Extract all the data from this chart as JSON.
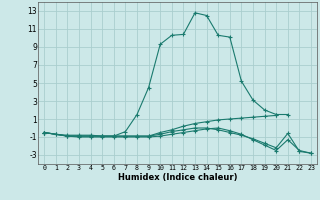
{
  "xlabel": "Humidex (Indice chaleur)",
  "background_color": "#cce8e8",
  "grid_color": "#aacece",
  "line_color": "#1a7a6e",
  "xlim": [
    -0.5,
    23.5
  ],
  "ylim": [
    -4,
    14
  ],
  "xticks": [
    0,
    1,
    2,
    3,
    4,
    5,
    6,
    7,
    8,
    9,
    10,
    11,
    12,
    13,
    14,
    15,
    16,
    17,
    18,
    19,
    20,
    21,
    22,
    23
  ],
  "yticks": [
    -3,
    -1,
    1,
    3,
    5,
    7,
    9,
    11,
    13
  ],
  "series": [
    {
      "x": [
        0,
        1,
        2,
        3,
        4,
        5,
        6,
        7,
        8,
        9,
        10,
        11,
        12,
        13,
        14,
        15,
        16,
        17,
        18,
        19,
        20,
        21
      ],
      "y": [
        -0.5,
        -0.7,
        -0.8,
        -0.8,
        -0.8,
        -0.9,
        -0.9,
        -0.4,
        1.5,
        4.5,
        9.3,
        10.3,
        10.4,
        12.8,
        12.5,
        10.3,
        10.1,
        5.2,
        3.1,
        2.0,
        1.5,
        1.5
      ]
    },
    {
      "x": [
        0,
        1,
        2,
        3,
        4,
        5,
        6,
        7,
        8,
        9,
        10,
        11,
        12,
        13,
        14,
        15,
        16,
        17,
        18,
        19,
        20
      ],
      "y": [
        -0.5,
        -0.7,
        -0.9,
        -0.9,
        -0.9,
        -0.9,
        -0.9,
        -0.9,
        -0.9,
        -0.9,
        -0.5,
        -0.2,
        0.2,
        0.5,
        0.7,
        0.9,
        1.0,
        1.1,
        1.2,
        1.3,
        1.4
      ]
    },
    {
      "x": [
        0,
        2,
        3,
        4,
        5,
        6,
        7,
        8,
        9,
        10,
        11,
        12,
        13,
        14,
        15,
        16,
        17,
        18,
        19,
        20,
        21,
        22,
        23
      ],
      "y": [
        -0.5,
        -0.9,
        -0.9,
        -0.9,
        -0.9,
        -0.9,
        -0.9,
        -0.9,
        -0.9,
        -0.7,
        -0.4,
        -0.2,
        0.0,
        0.0,
        -0.2,
        -0.5,
        -0.8,
        -1.2,
        -1.7,
        -2.2,
        -0.6,
        -2.6,
        -2.8
      ]
    },
    {
      "x": [
        0,
        2,
        3,
        4,
        5,
        6,
        7,
        8,
        9,
        10,
        11,
        12,
        13,
        14,
        15,
        16,
        17,
        18,
        19,
        20,
        21,
        22,
        23
      ],
      "y": [
        -0.5,
        -0.9,
        -1.0,
        -1.0,
        -1.0,
        -1.0,
        -1.0,
        -1.0,
        -1.0,
        -0.9,
        -0.7,
        -0.5,
        -0.3,
        -0.1,
        0.0,
        -0.3,
        -0.7,
        -1.3,
        -1.9,
        -2.5,
        -1.3,
        -2.5,
        -2.8
      ]
    }
  ]
}
